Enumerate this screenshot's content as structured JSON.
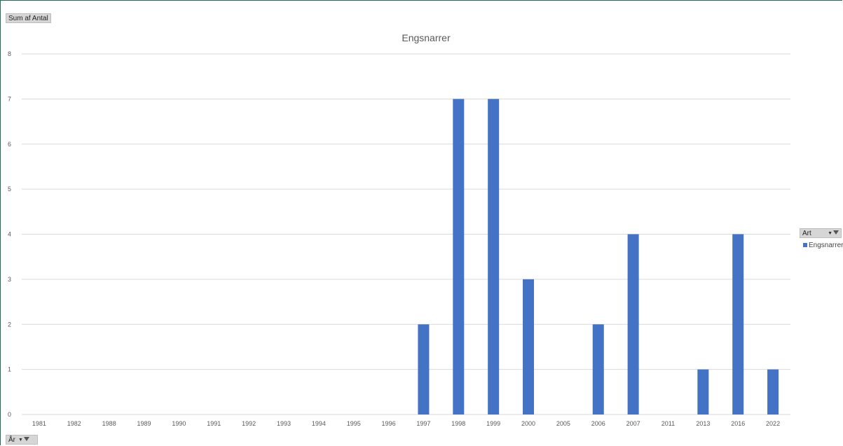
{
  "pivot": {
    "values_field": "Sum af Antal",
    "axis_field": "År",
    "legend_field": "Art"
  },
  "colors": {
    "bar": "#4472c4",
    "grid": "#d9d9d9",
    "frame": "#1f6f50"
  },
  "chart_data": {
    "type": "bar",
    "title": "Engsnarrer",
    "categories": [
      "1981",
      "1982",
      "1988",
      "1989",
      "1990",
      "1991",
      "1992",
      "1993",
      "1994",
      "1995",
      "1996",
      "1997",
      "1998",
      "1999",
      "2000",
      "2005",
      "2006",
      "2007",
      "2011",
      "2013",
      "2016",
      "2022"
    ],
    "series": [
      {
        "name": "Engsnarrer",
        "values": [
          0,
          0,
          0,
          0,
          0,
          0,
          0,
          0,
          0,
          0,
          0,
          2,
          7,
          7,
          3,
          0,
          2,
          4,
          0,
          1,
          4,
          1
        ]
      }
    ],
    "ylim": [
      0,
      8
    ],
    "yticks": [
      0,
      1,
      2,
      3,
      4,
      5,
      6,
      7,
      8
    ],
    "grid": true,
    "legend": "right"
  }
}
